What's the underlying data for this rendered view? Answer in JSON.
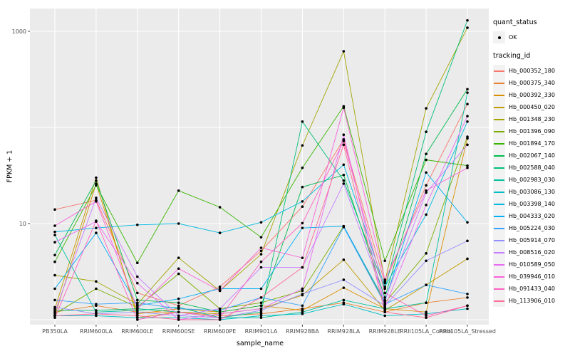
{
  "chart_data": {
    "type": "line",
    "title": "",
    "xlabel": "sample_name",
    "ylabel": "FPKM + 1",
    "y_scale": "log10",
    "ylim": [
      0.9,
      1700
    ],
    "y_tick_values": [
      10,
      1000
    ],
    "y_tick_labels": [
      "10",
      "1000"
    ],
    "y_gridlines": [
      1,
      10,
      100,
      1000
    ],
    "grid": "on",
    "legend_position": "right",
    "categories": [
      "PB350LA",
      "RRIM600LA",
      "RRIM600LE",
      "RRIM600SE",
      "RRIM600PE",
      "RRIM901LA",
      "RRIM928BA",
      "RRIM928LA",
      "RRIM928LE",
      "RRII105LA_Control",
      "RRII105LA_Stressed"
    ],
    "series": [
      {
        "name": "Hb_000352_180",
        "color": "#F8766D",
        "values": [
          14,
          17.5,
          1.9,
          1.4,
          2.2,
          5.2,
          15,
          75,
          2.4,
          25,
          175
        ]
      },
      {
        "name": "Hb_000375_340",
        "color": "#EA8331",
        "values": [
          1.2,
          1.4,
          1.2,
          1.2,
          1.1,
          1.15,
          1.3,
          1.5,
          1.2,
          1.5,
          1.7
        ]
      },
      {
        "name": "Hb_000392_330",
        "color": "#D89000",
        "values": [
          1.1,
          26,
          1.15,
          1.3,
          1.2,
          1.4,
          1.25,
          2.15,
          1.3,
          1.2,
          77
        ]
      },
      {
        "name": "Hb_000450_020",
        "color": "#C09B00",
        "values": [
          1.3,
          30,
          1.05,
          1.2,
          1.15,
          1.3,
          1.8,
          4.2,
          1.25,
          2.3,
          4.3
        ]
      },
      {
        "name": "Hb_001348_230",
        "color": "#A3A500",
        "values": [
          2.9,
          2.5,
          1.45,
          4.4,
          2.0,
          4.8,
          65,
          620,
          2.5,
          158,
          1090
        ]
      },
      {
        "name": "Hb_001396_090",
        "color": "#7CAE00",
        "values": [
          1.15,
          2.1,
          1.35,
          3.0,
          1.3,
          1.5,
          2.0,
          9.4,
          1.5,
          4.9,
          80
        ]
      },
      {
        "name": "Hb_001894_170",
        "color": "#39B600",
        "values": [
          4.0,
          25,
          3.9,
          22,
          14.8,
          7.2,
          38,
          166,
          4.1,
          46,
          40
        ]
      },
      {
        "name": "Hb_002067_140",
        "color": "#00BB4E",
        "values": [
          4.7,
          28,
          1.6,
          1.5,
          1.2,
          1.4,
          24,
          32,
          1.7,
          53,
          250
        ]
      },
      {
        "name": "Hb_002588_040",
        "color": "#00C079",
        "values": [
          1.25,
          1.25,
          1.3,
          1.2,
          1.05,
          1.2,
          115,
          28,
          2.1,
          90,
          1300
        ]
      },
      {
        "name": "Hb_002983_030",
        "color": "#00C19F",
        "values": [
          7.6,
          1.2,
          1.25,
          1.35,
          1.05,
          1.05,
          1.2,
          1.6,
          1.3,
          1.5,
          230
        ]
      },
      {
        "name": "Hb_003086_130",
        "color": "#00BFC4",
        "values": [
          1.1,
          1.1,
          1.05,
          1.05,
          1.0,
          1.1,
          1.15,
          1.45,
          1.1,
          1.15,
          1.3
        ]
      },
      {
        "name": "Hb_003398_140",
        "color": "#00BAE0",
        "values": [
          8.2,
          9.0,
          9.7,
          10,
          8.0,
          10.3,
          17,
          41,
          2.2,
          12.4,
          115
        ]
      },
      {
        "name": "Hb_004333_020",
        "color": "#00B0F6",
        "values": [
          2.1,
          8.0,
          1.4,
          1.65,
          2.1,
          2.1,
          9.0,
          9.4,
          1.55,
          34,
          10.3
        ]
      },
      {
        "name": "Hb_005224_030",
        "color": "#35A2FF",
        "values": [
          1.6,
          1.45,
          1.5,
          1.3,
          1.25,
          1.7,
          1.4,
          9.2,
          1.45,
          2.3,
          1.85
        ]
      },
      {
        "name": "Hb_005914_070",
        "color": "#9590FF",
        "values": [
          1.35,
          1.15,
          1.2,
          1.1,
          1.05,
          1.25,
          1.85,
          2.6,
          1.4,
          4.1,
          6.6
        ]
      },
      {
        "name": "Hb_008516_020",
        "color": "#C77CFF",
        "values": [
          1.2,
          18.5,
          2.8,
          1.1,
          1.3,
          3.5,
          3.5,
          26,
          1.6,
          21,
          66
        ]
      },
      {
        "name": "Hb_010589_050",
        "color": "#E76BF3",
        "values": [
          6.4,
          10.5,
          2.4,
          1.0,
          1.15,
          1.3,
          2.1,
          84,
          1.35,
          15.6,
          131
        ]
      },
      {
        "name": "Hb_039946_010",
        "color": "#FA62DB",
        "values": [
          9.5,
          17,
          1.3,
          3.4,
          2.0,
          5.6,
          4.4,
          160,
          2.6,
          22,
          38
        ]
      },
      {
        "name": "Hb_091433_040",
        "color": "#FF61C3",
        "values": [
          1.05,
          10.7,
          1.0,
          1.2,
          1.05,
          4.0,
          10.1,
          72,
          1.9,
          1.1,
          1.4
        ]
      },
      {
        "name": "Hb_113906_010",
        "color": "#FF6A98",
        "values": [
          1.1,
          1.15,
          1.1,
          1.0,
          1.0,
          1.7,
          3.5,
          66,
          1.2,
          1.05,
          1.4
        ]
      }
    ],
    "legend": {
      "quant_status_title": "quant_status",
      "quant_status_items": [
        "OK"
      ],
      "tracking_id_title": "tracking_id"
    },
    "style": {
      "panel_bg": "#EBEBEB",
      "grid_color": "#FFFFFF",
      "point_color": "#000000",
      "tick_label_color": "#4D4D4D",
      "tick_mark_color": "#333333",
      "legend_key_bg": "#F2F2F2"
    }
  }
}
